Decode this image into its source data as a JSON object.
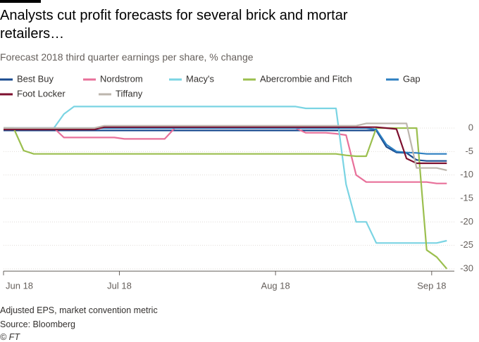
{
  "chart_data": {
    "type": "line",
    "title": "Analysts cut profit forecasts for several brick and mortar retailers…",
    "subtitle": "Forecast 2018 third quarter earnings per share, % change",
    "notes": [
      "Adjusted EPS, market convention metric",
      "Source: Bloomberg",
      "© FT"
    ],
    "x": [
      0,
      2,
      4,
      6,
      8,
      10,
      12,
      14,
      16,
      18,
      20,
      22,
      24,
      26,
      28,
      30,
      32,
      34,
      36,
      38,
      40,
      42,
      44,
      46,
      48,
      50,
      52,
      54,
      56,
      58,
      60,
      62,
      64,
      66,
      68,
      70,
      72,
      74,
      76,
      78,
      80,
      82,
      84,
      86,
      88
    ],
    "xlim": [
      0,
      89.5
    ],
    "xticks": [
      {
        "value": 0,
        "label": "Jun 18"
      },
      {
        "value": 23,
        "label": "Jul 18"
      },
      {
        "value": 54,
        "label": "Aug 18"
      },
      {
        "value": 85,
        "label": "Sep 18"
      }
    ],
    "ylim": [
      -30.5,
      5
    ],
    "yticks": [
      0,
      -5,
      -10,
      -15,
      -20,
      -25,
      -30
    ],
    "grid": true,
    "series": [
      {
        "name": "Best Buy",
        "color": "#1a4b8f",
        "values": [
          -0.5,
          -0.5,
          -0.5,
          -0.5,
          -0.5,
          -0.5,
          -0.5,
          -0.5,
          -0.5,
          -0.5,
          -0.5,
          -0.5,
          -0.5,
          -0.5,
          -0.5,
          -0.5,
          -0.5,
          -0.5,
          -0.5,
          -0.5,
          -0.5,
          -0.5,
          -0.5,
          -0.5,
          -0.5,
          -0.5,
          -0.5,
          -0.5,
          -0.5,
          -0.5,
          -0.5,
          -0.5,
          -0.5,
          -0.5,
          -0.5,
          -0.5,
          -0.5,
          -0.5,
          -4,
          -5.2,
          -5.3,
          -6.8,
          -7,
          -7,
          -7
        ]
      },
      {
        "name": "Nordstrom",
        "color": "#e8709a",
        "values": [
          0,
          0,
          0,
          0,
          0,
          0,
          -2,
          -2,
          -2,
          -2,
          -2,
          -2,
          -2.3,
          -2.3,
          -2.3,
          -2.3,
          -2.3,
          0,
          0,
          0,
          0,
          0,
          0,
          0,
          0,
          0,
          0,
          0,
          0,
          0,
          -1,
          -1,
          -1,
          -1.2,
          -1.5,
          -10,
          -11.5,
          -11.5,
          -11.5,
          -11.5,
          -11.5,
          -11.5,
          -11.5,
          -11.8,
          -11.8
        ]
      },
      {
        "name": "Macy's",
        "color": "#7ad4e3",
        "values": [
          0,
          0,
          0,
          0,
          0,
          0,
          3,
          4.6,
          4.6,
          4.6,
          4.6,
          4.6,
          4.6,
          4.6,
          4.6,
          4.6,
          4.6,
          4.6,
          4.6,
          4.6,
          4.6,
          4.6,
          4.6,
          4.6,
          4.6,
          4.6,
          4.6,
          4.6,
          4.6,
          4.6,
          4.2,
          4.2,
          4.2,
          4.2,
          -12,
          -20,
          -20,
          -24.5,
          -24.5,
          -24.5,
          -24.5,
          -24.5,
          -24.5,
          -24.5,
          -24
        ]
      },
      {
        "name": "Abercrombie and Fitch",
        "color": "#9bbf4e",
        "values": [
          0,
          0,
          -4.8,
          -5.5,
          -5.5,
          -5.5,
          -5.5,
          -5.5,
          -5.5,
          -5.5,
          -5.5,
          -5.5,
          -5.5,
          -5.5,
          -5.5,
          -5.5,
          -5.5,
          -5.5,
          -5.5,
          -5.5,
          -5.5,
          -5.5,
          -5.5,
          -5.5,
          -5.5,
          -5.5,
          -5.5,
          -5.5,
          -5.5,
          -5.5,
          -5.5,
          -5.5,
          -5.5,
          -5.5,
          -5.8,
          -6,
          -6,
          0,
          0,
          0,
          0,
          0,
          -26,
          -27.5,
          -30
        ]
      },
      {
        "name": "Gap",
        "color": "#2d7fc1",
        "values": [
          0,
          0,
          0,
          0,
          0,
          0,
          0,
          0,
          0,
          0,
          0,
          0,
          0,
          0,
          0,
          0,
          0,
          0,
          0,
          0,
          0,
          0,
          0,
          0,
          0,
          0,
          0,
          0,
          0,
          0,
          0,
          0,
          0,
          0,
          0,
          0,
          0,
          -0.3,
          -3.5,
          -5,
          -5.2,
          -5.3,
          -5.5,
          -5.5,
          -5.5
        ]
      },
      {
        "name": "Foot Locker",
        "color": "#7d0f2e",
        "values": [
          -0.3,
          -0.3,
          -0.3,
          -0.3,
          -0.3,
          -0.3,
          -0.3,
          -0.3,
          -0.3,
          -0.3,
          0.2,
          0.2,
          0.2,
          0.2,
          0.2,
          0.2,
          0.2,
          0.2,
          0.2,
          0.2,
          0.2,
          0.2,
          0.2,
          0.2,
          0.2,
          0.2,
          0.2,
          0.2,
          0.2,
          0.2,
          0.2,
          0.2,
          0.2,
          0.2,
          0.2,
          0.2,
          0.2,
          0.2,
          0,
          -0.2,
          -6.5,
          -7.5,
          -7.5,
          -7.5,
          -7.5
        ]
      },
      {
        "name": "Tiffany",
        "color": "#bdb6ad",
        "values": [
          0,
          0,
          0,
          0,
          0,
          0,
          0,
          0,
          0,
          0,
          0.5,
          0.5,
          0.5,
          0.5,
          0.5,
          0.5,
          0.5,
          0.5,
          0.5,
          0.5,
          0.5,
          0.5,
          0.5,
          0.5,
          0.5,
          0.5,
          0.5,
          0.5,
          0.5,
          0.5,
          0.5,
          0.5,
          0.5,
          0.5,
          0.5,
          0.5,
          1,
          1,
          1,
          1,
          1,
          -8.5,
          -8.5,
          -8.5,
          -9
        ]
      }
    ]
  }
}
